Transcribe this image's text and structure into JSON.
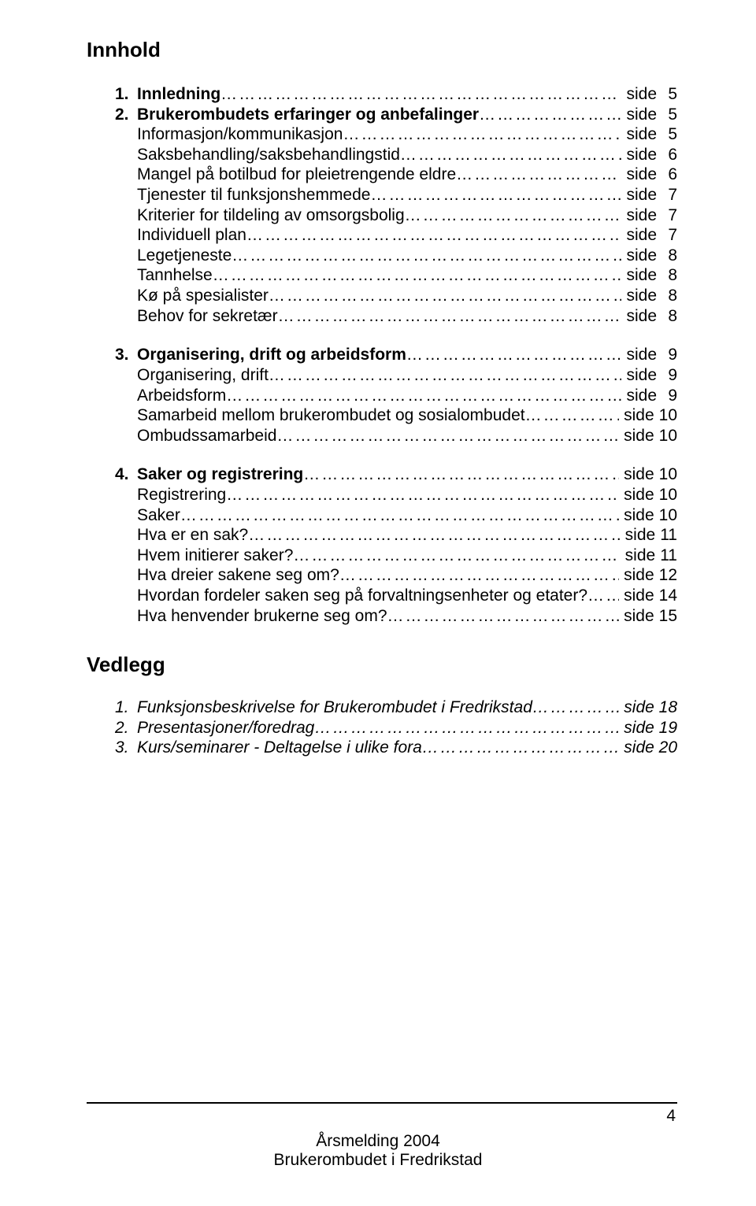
{
  "title": "Innhold",
  "page_word": "side",
  "sections": [
    {
      "group": [
        {
          "num": "1.",
          "label": "Innledning",
          "bold": true,
          "page": "5"
        },
        {
          "num": "2.",
          "label": "Brukerombudets erfaringer og anbefalinger",
          "bold": true,
          "page": "5"
        },
        {
          "num": "",
          "label": "Informasjon/kommunikasjon",
          "page": "5"
        },
        {
          "num": "",
          "label": "Saksbehandling/saksbehandlingstid",
          "page": "6"
        },
        {
          "num": "",
          "label": "Mangel på botilbud for pleietrengende eldre",
          "page": "6"
        },
        {
          "num": "",
          "label": "Tjenester til funksjonshemmede",
          "page": "7"
        },
        {
          "num": "",
          "label": "Kriterier for tildeling av omsorgsbolig",
          "page": "7"
        },
        {
          "num": "",
          "label": "Individuell plan",
          "page": "7"
        },
        {
          "num": "",
          "label": "Legetjeneste",
          "page": "8"
        },
        {
          "num": "",
          "label": "Tannhelse",
          "page": "8"
        },
        {
          "num": "",
          "label": "Kø på spesialister",
          "page": "8"
        },
        {
          "num": "",
          "label": "Behov for sekretær",
          "page": "8"
        }
      ]
    },
    {
      "group": [
        {
          "num": "3.",
          "label": "Organisering, drift og arbeidsform",
          "bold": true,
          "page": "9"
        },
        {
          "num": "",
          "label": "Organisering, drift",
          "page": "9"
        },
        {
          "num": "",
          "label": "Arbeidsform",
          "page": "9"
        },
        {
          "num": "",
          "label": "Samarbeid mellom brukerombudet og sosialombudet",
          "page": "10"
        },
        {
          "num": "",
          "label": "Ombudssamarbeid",
          "page": "10"
        }
      ]
    },
    {
      "group": [
        {
          "num": "4.",
          "label": "Saker og registrering",
          "bold": true,
          "page": "10"
        },
        {
          "num": "",
          "label": "Registrering",
          "page": "10"
        },
        {
          "num": "",
          "label": "Saker",
          "page": "10"
        },
        {
          "num": "",
          "label": "Hva er en sak?",
          "page": "11"
        },
        {
          "num": "",
          "label": "Hvem initierer saker?",
          "page": "11"
        },
        {
          "num": "",
          "label": "Hva dreier sakene seg om?",
          "page": "12"
        },
        {
          "num": "",
          "label": "Hvordan fordeler saken seg på forvaltningsenheter og etater?",
          "page": "14"
        },
        {
          "num": "",
          "label": "Hva henvender brukerne seg om?",
          "page": "15"
        }
      ]
    }
  ],
  "vedlegg_title": "Vedlegg",
  "vedlegg": [
    {
      "num": "1.",
      "label": "Funksjonsbeskrivelse for Brukerombudet i Fredrikstad",
      "page": "18"
    },
    {
      "num": "2.",
      "label": "Presentasjoner/foredrag",
      "page": "19"
    },
    {
      "num": "3.",
      "label": "Kurs/seminarer - Deltagelse i ulike fora",
      "page": "20"
    }
  ],
  "footer": {
    "pagenum": "4",
    "line1": "Årsmelding 2004",
    "line2": "Brukerombudet i Fredrikstad"
  },
  "colors": {
    "background": "#ffffff",
    "text": "#000000"
  }
}
